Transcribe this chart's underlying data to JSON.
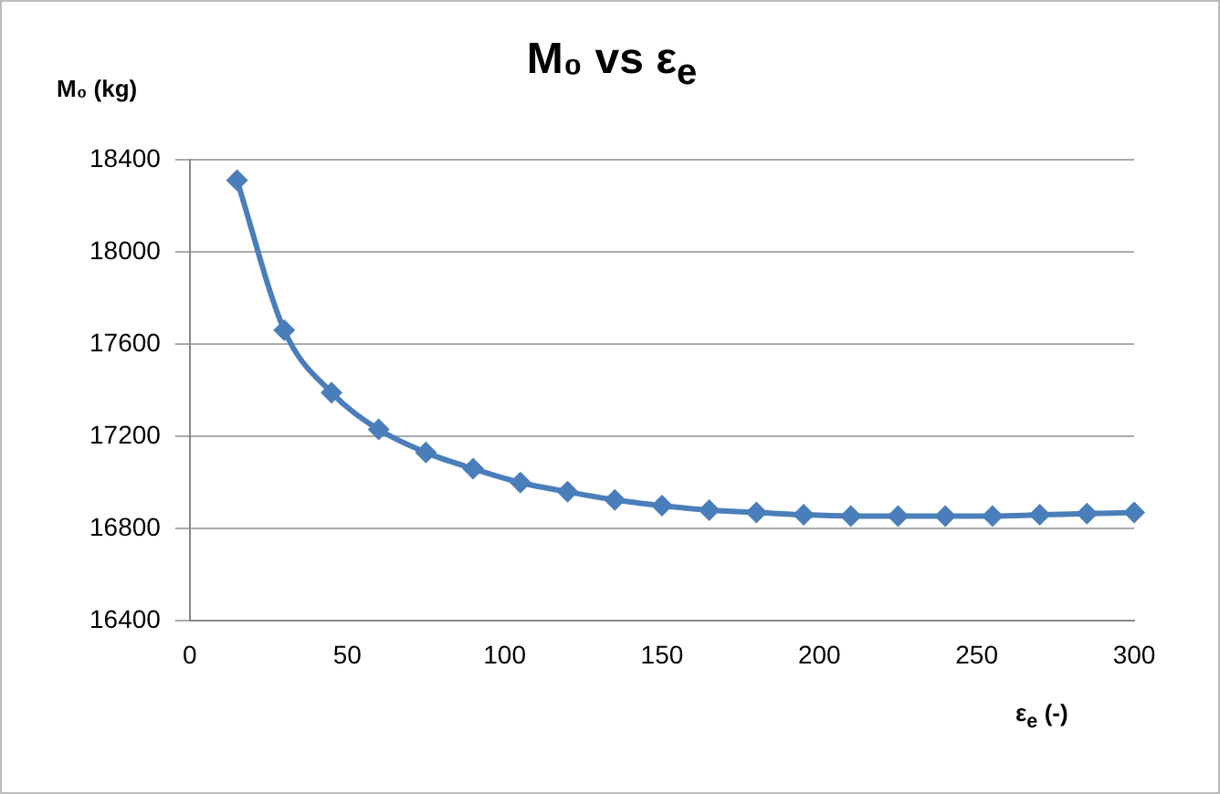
{
  "chart_data": {
    "type": "line",
    "title": "M₀ vs ε$_{e}$",
    "xlabel": "ε$_{e}$ (-)",
    "ylabel": "M₀ (kg)",
    "x": [
      15,
      30,
      45,
      60,
      75,
      90,
      105,
      120,
      135,
      150,
      165,
      180,
      195,
      210,
      225,
      240,
      255,
      270,
      285,
      300
    ],
    "series": [
      {
        "color": "#4a7ebb",
        "values": [
          18310,
          17660,
          17390,
          17230,
          17130,
          17060,
          17000,
          16960,
          16925,
          16900,
          16880,
          16870,
          16860,
          16855,
          16855,
          16855,
          16855,
          16860,
          16865,
          16870
        ]
      }
    ],
    "xlim": [
      0,
      300
    ],
    "xticks": [
      0,
      50,
      100,
      150,
      200,
      250,
      300
    ],
    "ylim": [
      16400,
      18400
    ],
    "yticks": [
      16400,
      16800,
      17200,
      17600,
      18000,
      18400
    ],
    "grid": "y",
    "legend": false,
    "marker": "diamond",
    "line_style": "solid"
  }
}
